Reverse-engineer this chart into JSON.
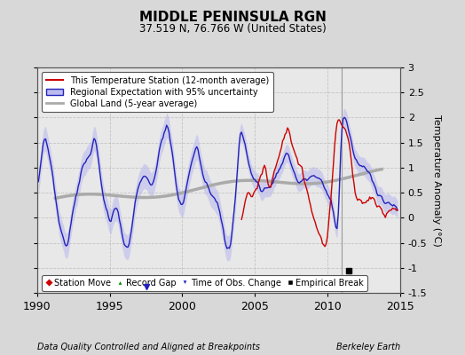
{
  "title": "MIDDLE PENINSULA RGN",
  "subtitle": "37.519 N, 76.766 W (United States)",
  "ylabel": "Temperature Anomaly (°C)",
  "xlabel_left": "Data Quality Controlled and Aligned at Breakpoints",
  "xlabel_right": "Berkeley Earth",
  "ylim": [
    -1.5,
    3.0
  ],
  "xlim": [
    1990,
    2015
  ],
  "xticks": [
    1990,
    1995,
    2000,
    2005,
    2010,
    2015
  ],
  "yticks_right": [
    -1.5,
    -1.0,
    -0.5,
    0.0,
    0.5,
    1.0,
    1.5,
    2.0,
    2.5,
    3.0
  ],
  "bg_color": "#d8d8d8",
  "plot_bg_color": "#e8e8e8",
  "line_red_color": "#cc0000",
  "line_blue_color": "#2222bb",
  "band_blue_color": "#bbbbee",
  "line_gray_color": "#aaaaaa",
  "grid_color": "#bbbbbb",
  "empirical_break_year": 2011.5,
  "empirical_break_value": -1.05,
  "obs_change_year": 1997.5,
  "obs_change_value": -1.38,
  "vline_year": 2011.0,
  "red_start_year": 2004.0
}
